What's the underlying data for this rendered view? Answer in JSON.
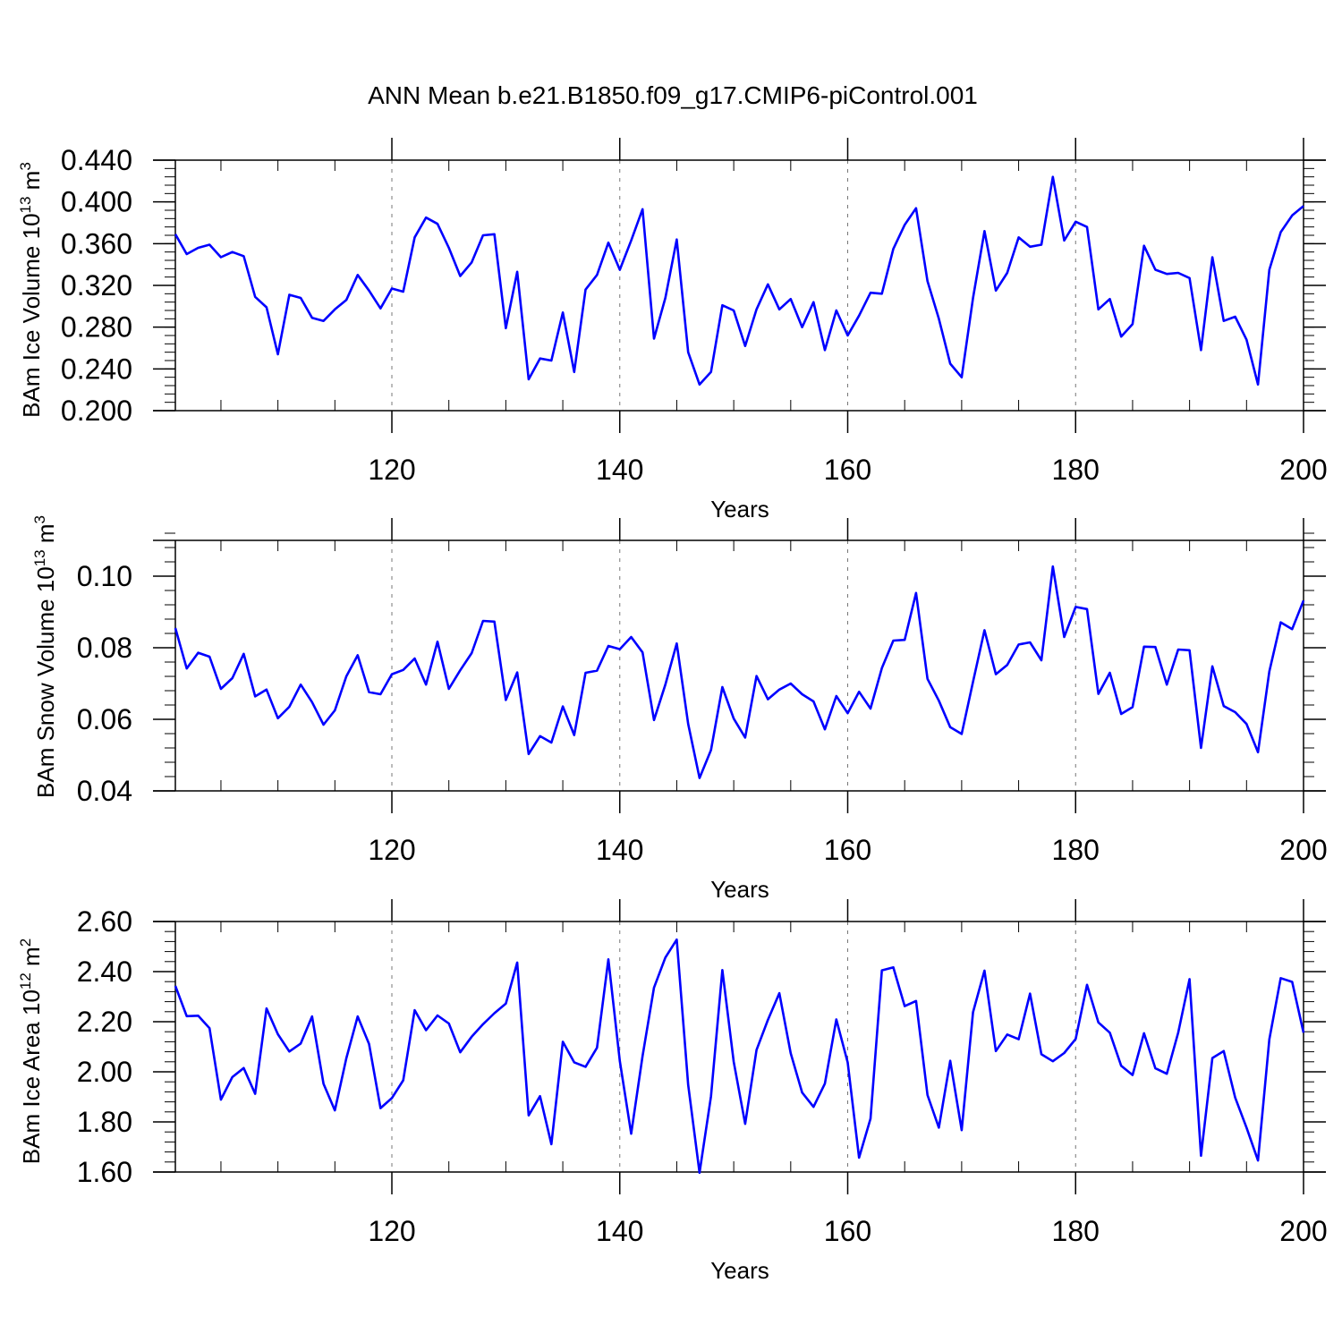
{
  "title": "ANN Mean b.e21.B1850.f09_g17.CMIP6-piControl.001",
  "colors": {
    "line": "#0000ff",
    "axis": "#000000",
    "grid": "#777777"
  },
  "chart_data": [
    {
      "type": "line",
      "ylabel": {
        "main": "BAm Ice Volume 10",
        "sup": "13",
        "unit": " m",
        "unit_sup": "3"
      },
      "xlabel": "Years",
      "xlim": [
        101,
        200
      ],
      "xticks": [
        120,
        140,
        160,
        180,
        200
      ],
      "ylim": [
        0.2,
        0.44
      ],
      "yticks": [
        0.2,
        0.24,
        0.28,
        0.32,
        0.36,
        0.4,
        0.44
      ],
      "ytick_labels": [
        "0.200",
        "0.240",
        "0.280",
        "0.320",
        "0.360",
        "0.400",
        "0.440"
      ],
      "yminor": 0.008,
      "x_start": 101,
      "values": [
        0.369,
        0.35,
        0.356,
        0.359,
        0.347,
        0.352,
        0.348,
        0.309,
        0.299,
        0.254,
        0.311,
        0.308,
        0.289,
        0.286,
        0.297,
        0.306,
        0.33,
        0.315,
        0.298,
        0.317,
        0.314,
        0.366,
        0.385,
        0.379,
        0.356,
        0.329,
        0.342,
        0.368,
        0.369,
        0.279,
        0.333,
        0.23,
        0.25,
        0.248,
        0.294,
        0.237,
        0.316,
        0.33,
        0.361,
        0.335,
        0.363,
        0.393,
        0.269,
        0.308,
        0.364,
        0.256,
        0.225,
        0.237,
        0.301,
        0.296,
        0.262,
        0.297,
        0.321,
        0.297,
        0.307,
        0.28,
        0.304,
        0.258,
        0.296,
        0.272,
        0.291,
        0.313,
        0.312,
        0.355,
        0.378,
        0.394,
        0.324,
        0.288,
        0.245,
        0.232,
        0.308,
        0.372,
        0.315,
        0.332,
        0.366,
        0.357,
        0.359,
        0.424,
        0.363,
        0.381,
        0.376,
        0.297,
        0.307,
        0.271,
        0.283,
        0.358,
        0.335,
        0.331,
        0.332,
        0.327,
        0.258,
        0.347,
        0.286,
        0.29,
        0.268,
        0.225,
        0.335,
        0.371,
        0.387,
        0.396
      ]
    },
    {
      "type": "line",
      "ylabel": {
        "main": "BAm Snow Volume 10",
        "sup": "13",
        "unit": " m",
        "unit_sup": "3"
      },
      "xlabel": "Years",
      "xlim": [
        101,
        200
      ],
      "xticks": [
        120,
        140,
        160,
        180,
        200
      ],
      "ylim": [
        0.04,
        0.11
      ],
      "yticks": [
        0.04,
        0.06,
        0.08,
        0.1
      ],
      "ytick_labels": [
        "0.04",
        "0.06",
        "0.08",
        "0.10"
      ],
      "yminor": 0.004,
      "x_start": 101,
      "values": [
        0.0855,
        0.0742,
        0.0786,
        0.0775,
        0.0685,
        0.0715,
        0.0783,
        0.0664,
        0.0683,
        0.0603,
        0.0635,
        0.0697,
        0.0648,
        0.0585,
        0.0625,
        0.072,
        0.0779,
        0.0676,
        0.067,
        0.0726,
        0.0738,
        0.077,
        0.0697,
        0.0817,
        0.0685,
        0.0737,
        0.0785,
        0.0875,
        0.0873,
        0.0654,
        0.0731,
        0.0503,
        0.0553,
        0.0535,
        0.0636,
        0.0556,
        0.073,
        0.0736,
        0.0805,
        0.0796,
        0.083,
        0.0787,
        0.0598,
        0.0697,
        0.0812,
        0.0587,
        0.0436,
        0.0514,
        0.069,
        0.0602,
        0.0549,
        0.0721,
        0.0656,
        0.0683,
        0.07,
        0.067,
        0.065,
        0.0572,
        0.0665,
        0.0617,
        0.0677,
        0.063,
        0.0743,
        0.082,
        0.0822,
        0.0953,
        0.0713,
        0.0652,
        0.0578,
        0.0559,
        0.0705,
        0.0849,
        0.0726,
        0.0752,
        0.0809,
        0.0815,
        0.0765,
        0.1027,
        0.083,
        0.0914,
        0.0908,
        0.0671,
        0.073,
        0.0615,
        0.0634,
        0.0803,
        0.0802,
        0.0697,
        0.0795,
        0.0793,
        0.052,
        0.0748,
        0.0637,
        0.062,
        0.0587,
        0.0508,
        0.0734,
        0.0871,
        0.0852,
        0.0932
      ]
    },
    {
      "type": "line",
      "ylabel": {
        "main": "BAm Ice Area 10",
        "sup": "12",
        "unit": " m",
        "unit_sup": "2"
      },
      "xlabel": "Years",
      "xlim": [
        101,
        200
      ],
      "xticks": [
        120,
        140,
        160,
        180,
        200
      ],
      "ylim": [
        1.6,
        2.6
      ],
      "yticks": [
        1.6,
        1.8,
        2.0,
        2.2,
        2.4,
        2.6
      ],
      "ytick_labels": [
        "1.60",
        "1.80",
        "2.00",
        "2.20",
        "2.40",
        "2.60"
      ],
      "yminor": 0.04,
      "x_start": 101,
      "values": [
        2.343,
        2.222,
        2.224,
        2.174,
        1.889,
        1.979,
        2.015,
        1.912,
        2.253,
        2.15,
        2.081,
        2.113,
        2.221,
        1.952,
        1.846,
        2.054,
        2.221,
        2.111,
        1.855,
        1.895,
        1.966,
        2.246,
        2.166,
        2.225,
        2.193,
        2.078,
        2.14,
        2.19,
        2.234,
        2.272,
        2.436,
        1.826,
        1.903,
        1.711,
        2.12,
        2.038,
        2.02,
        2.096,
        2.449,
        2.043,
        1.753,
        2.063,
        2.336,
        2.456,
        2.528,
        1.948,
        1.597,
        1.902,
        2.406,
        2.04,
        1.792,
        2.087,
        2.207,
        2.314,
        2.074,
        1.917,
        1.86,
        1.953,
        2.209,
        2.037,
        1.657,
        1.813,
        2.405,
        2.417,
        2.262,
        2.283,
        1.907,
        1.777,
        2.044,
        1.767,
        2.238,
        2.404,
        2.083,
        2.149,
        2.13,
        2.312,
        2.07,
        2.042,
        2.075,
        2.131,
        2.347,
        2.197,
        2.156,
        2.024,
        1.987,
        2.154,
        2.014,
        1.992,
        2.156,
        2.37,
        1.665,
        2.055,
        2.083,
        1.897,
        1.777,
        1.646,
        2.13,
        2.374,
        2.359,
        2.156
      ]
    }
  ]
}
